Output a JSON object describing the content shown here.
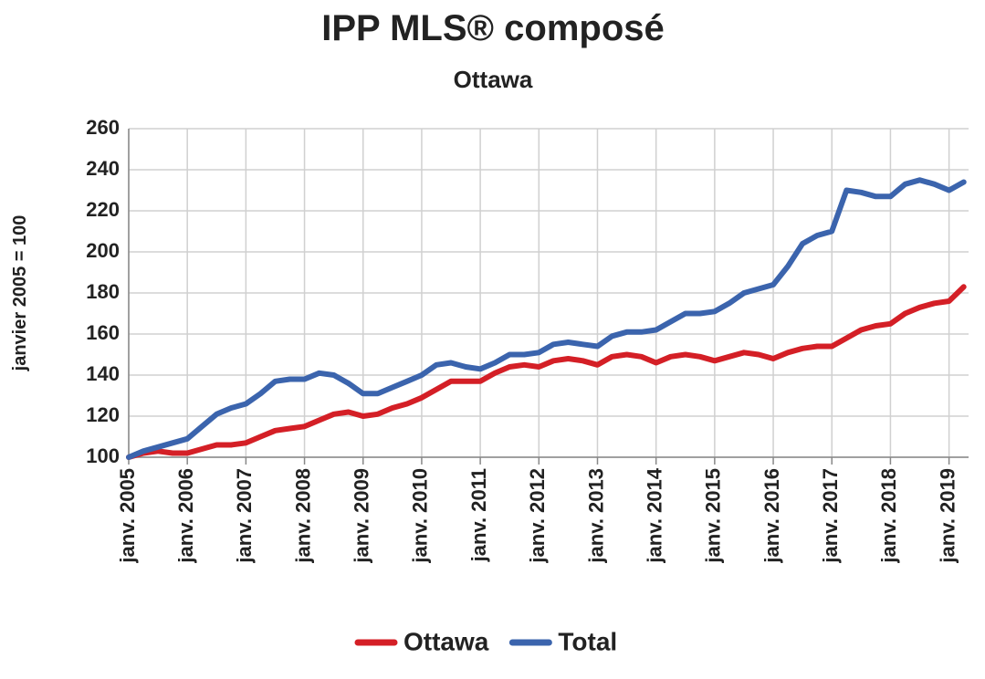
{
  "chart_data": {
    "type": "line",
    "title": "IPP MLS® composé",
    "subtitle": "Ottawa",
    "y_label": "janvier 2005 = 100",
    "x": [
      "2005-01",
      "2005-04",
      "2005-07",
      "2005-10",
      "2006-01",
      "2006-04",
      "2006-07",
      "2006-10",
      "2007-01",
      "2007-04",
      "2007-07",
      "2007-10",
      "2008-01",
      "2008-04",
      "2008-07",
      "2008-10",
      "2009-01",
      "2009-04",
      "2009-07",
      "2009-10",
      "2010-01",
      "2010-04",
      "2010-07",
      "2010-10",
      "2011-01",
      "2011-04",
      "2011-07",
      "2011-10",
      "2012-01",
      "2012-04",
      "2012-07",
      "2012-10",
      "2013-01",
      "2013-04",
      "2013-07",
      "2013-10",
      "2014-01",
      "2014-04",
      "2014-07",
      "2014-10",
      "2015-01",
      "2015-04",
      "2015-07",
      "2015-10",
      "2016-01",
      "2016-04",
      "2016-07",
      "2016-10",
      "2017-01",
      "2017-04",
      "2017-07",
      "2017-10",
      "2018-01",
      "2018-04",
      "2018-07",
      "2018-10",
      "2019-01",
      "2019-04"
    ],
    "series": [
      {
        "name": "Ottawa",
        "color": "#d41f26",
        "values": [
          100,
          102,
          103,
          102,
          102,
          104,
          106,
          106,
          107,
          110,
          113,
          114,
          115,
          118,
          121,
          122,
          120,
          121,
          124,
          126,
          129,
          133,
          137,
          137,
          137,
          141,
          144,
          145,
          144,
          147,
          148,
          147,
          145,
          149,
          150,
          149,
          146,
          149,
          150,
          149,
          147,
          149,
          151,
          150,
          148,
          151,
          153,
          154,
          154,
          158,
          162,
          164,
          165,
          170,
          173,
          175,
          176,
          183
        ]
      },
      {
        "name": "Total",
        "color": "#3b64ad",
        "values": [
          100,
          103,
          105,
          107,
          109,
          115,
          121,
          124,
          126,
          131,
          137,
          138,
          138,
          141,
          140,
          136,
          131,
          131,
          134,
          137,
          140,
          145,
          146,
          144,
          143,
          146,
          150,
          150,
          151,
          155,
          156,
          155,
          154,
          159,
          161,
          161,
          162,
          166,
          170,
          170,
          171,
          175,
          180,
          182,
          184,
          193,
          204,
          208,
          210,
          230,
          229,
          227,
          227,
          233,
          235,
          233,
          230,
          234
        ]
      }
    ],
    "xlim": [
      "2005-01",
      "2019-05"
    ],
    "xticks": [
      {
        "value": "2005-01",
        "label": "janv. 2005"
      },
      {
        "value": "2006-01",
        "label": "janv. 2006"
      },
      {
        "value": "2007-01",
        "label": "janv. 2007"
      },
      {
        "value": "2008-01",
        "label": "janv. 2008"
      },
      {
        "value": "2009-01",
        "label": "janv. 2009"
      },
      {
        "value": "2010-01",
        "label": "janv. 2010"
      },
      {
        "value": "2011-01",
        "label": "janv. 2011"
      },
      {
        "value": "2012-01",
        "label": "janv. 2012"
      },
      {
        "value": "2013-01",
        "label": "janv. 2013"
      },
      {
        "value": "2014-01",
        "label": "janv. 2014"
      },
      {
        "value": "2015-01",
        "label": "janv. 2015"
      },
      {
        "value": "2016-01",
        "label": "janv. 2016"
      },
      {
        "value": "2017-01",
        "label": "janv. 2017"
      },
      {
        "value": "2018-01",
        "label": "janv. 2018"
      },
      {
        "value": "2019-01",
        "label": "janv. 2019"
      }
    ],
    "ylim": [
      100,
      260
    ],
    "yticks": [
      100,
      120,
      140,
      160,
      180,
      200,
      220,
      240,
      260
    ],
    "grid": true,
    "legend": "bottom"
  }
}
